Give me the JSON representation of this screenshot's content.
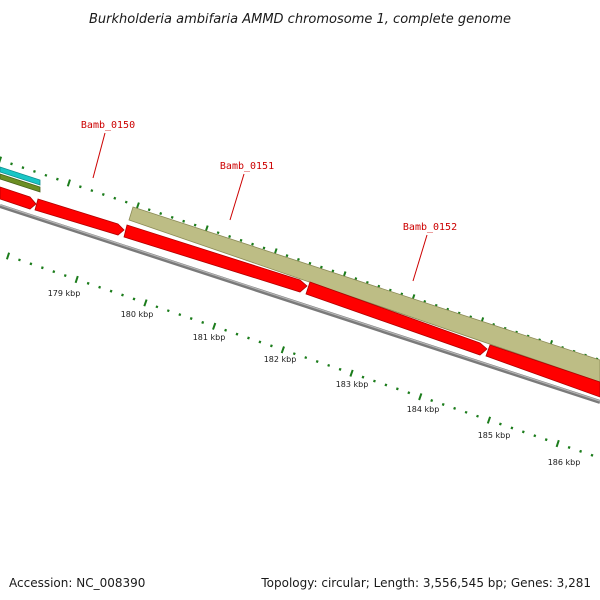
{
  "title": "Burkholderia ambifaria AMMD chromosome 1, complete genome",
  "footer": {
    "accession": "Accession: NC_008390",
    "stats": "Topology: circular; Length: 3,556,545 bp; Genes: 3,281"
  },
  "colors": {
    "cds_forward": "#ff0000",
    "cds_highlight": "#bdbd85",
    "cds_teal": "#19c6c6",
    "cds_olive": "#6b8e23",
    "backbone": "#7a7a7a",
    "tick": "#1b7c1b",
    "label": "#cc0000"
  },
  "gene_labels": [
    {
      "name": "Bamb_0150"
    },
    {
      "name": "Bamb_0151"
    },
    {
      "name": "Bamb_0152"
    }
  ],
  "scale_labels": [
    "179 kbp",
    "180 kbp",
    "181 kbp",
    "182 kbp",
    "183 kbp",
    "184 kbp",
    "185 kbp",
    "186 kbp"
  ]
}
